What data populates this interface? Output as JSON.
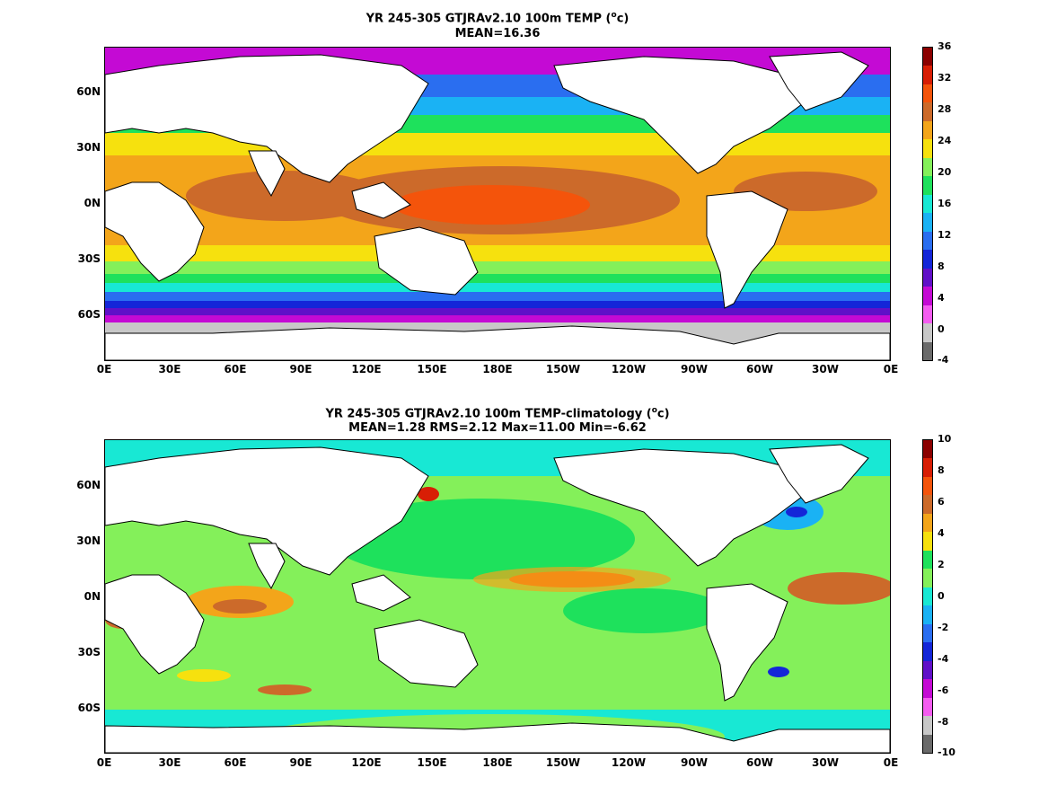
{
  "panel1": {
    "title_prefix": "YR 245-305 GTJRAv2.10 100m TEMP (",
    "title_unit_o": "o",
    "title_unit_c": "c)",
    "subtitle": "MEAN=16.36",
    "colorbar_labels": [
      "36",
      "32",
      "28",
      "24",
      "20",
      "16",
      "12",
      "8",
      "4",
      "0",
      "-4"
    ],
    "colors": [
      "#8b0000",
      "#d81e05",
      "#f4540b",
      "#cc6a2a",
      "#f3a51a",
      "#f6e10e",
      "#84f05a",
      "#1ee15c",
      "#18e8d4",
      "#1ab2f4",
      "#2a6ef0",
      "#1426d8",
      "#6010c8",
      "#c40ad4",
      "#f45cf0",
      "#c8c8c8",
      "#6a6a6a"
    ]
  },
  "panel2": {
    "title_prefix": "YR 245-305 GTJRAv2.10 100m TEMP-climatology (",
    "title_unit_o": "o",
    "title_unit_c": "c)",
    "subtitle": "MEAN=1.28   RMS=2.12   Max=11.00   Min=-6.62",
    "colorbar_labels": [
      "10",
      "8",
      "6",
      "4",
      "2",
      "0",
      "-2",
      "-4",
      "-6",
      "-8",
      "-10"
    ],
    "colors": [
      "#8b0000",
      "#d81e05",
      "#f4540b",
      "#cc6a2a",
      "#f3a51a",
      "#f6e10e",
      "#1ee15c",
      "#84f05a",
      "#18e8d4",
      "#1ab2f4",
      "#2a6ef0",
      "#1426d8",
      "#6010c8",
      "#c40ad4",
      "#f45cf0",
      "#c8c8c8",
      "#6a6a6a"
    ]
  },
  "lat_labels": [
    "60N",
    "30N",
    "0N",
    "30S",
    "60S"
  ],
  "lon_labels": [
    "0E",
    "30E",
    "60E",
    "90E",
    "120E",
    "150E",
    "180E",
    "150W",
    "120W",
    "90W",
    "60W",
    "30W",
    "0E"
  ]
}
